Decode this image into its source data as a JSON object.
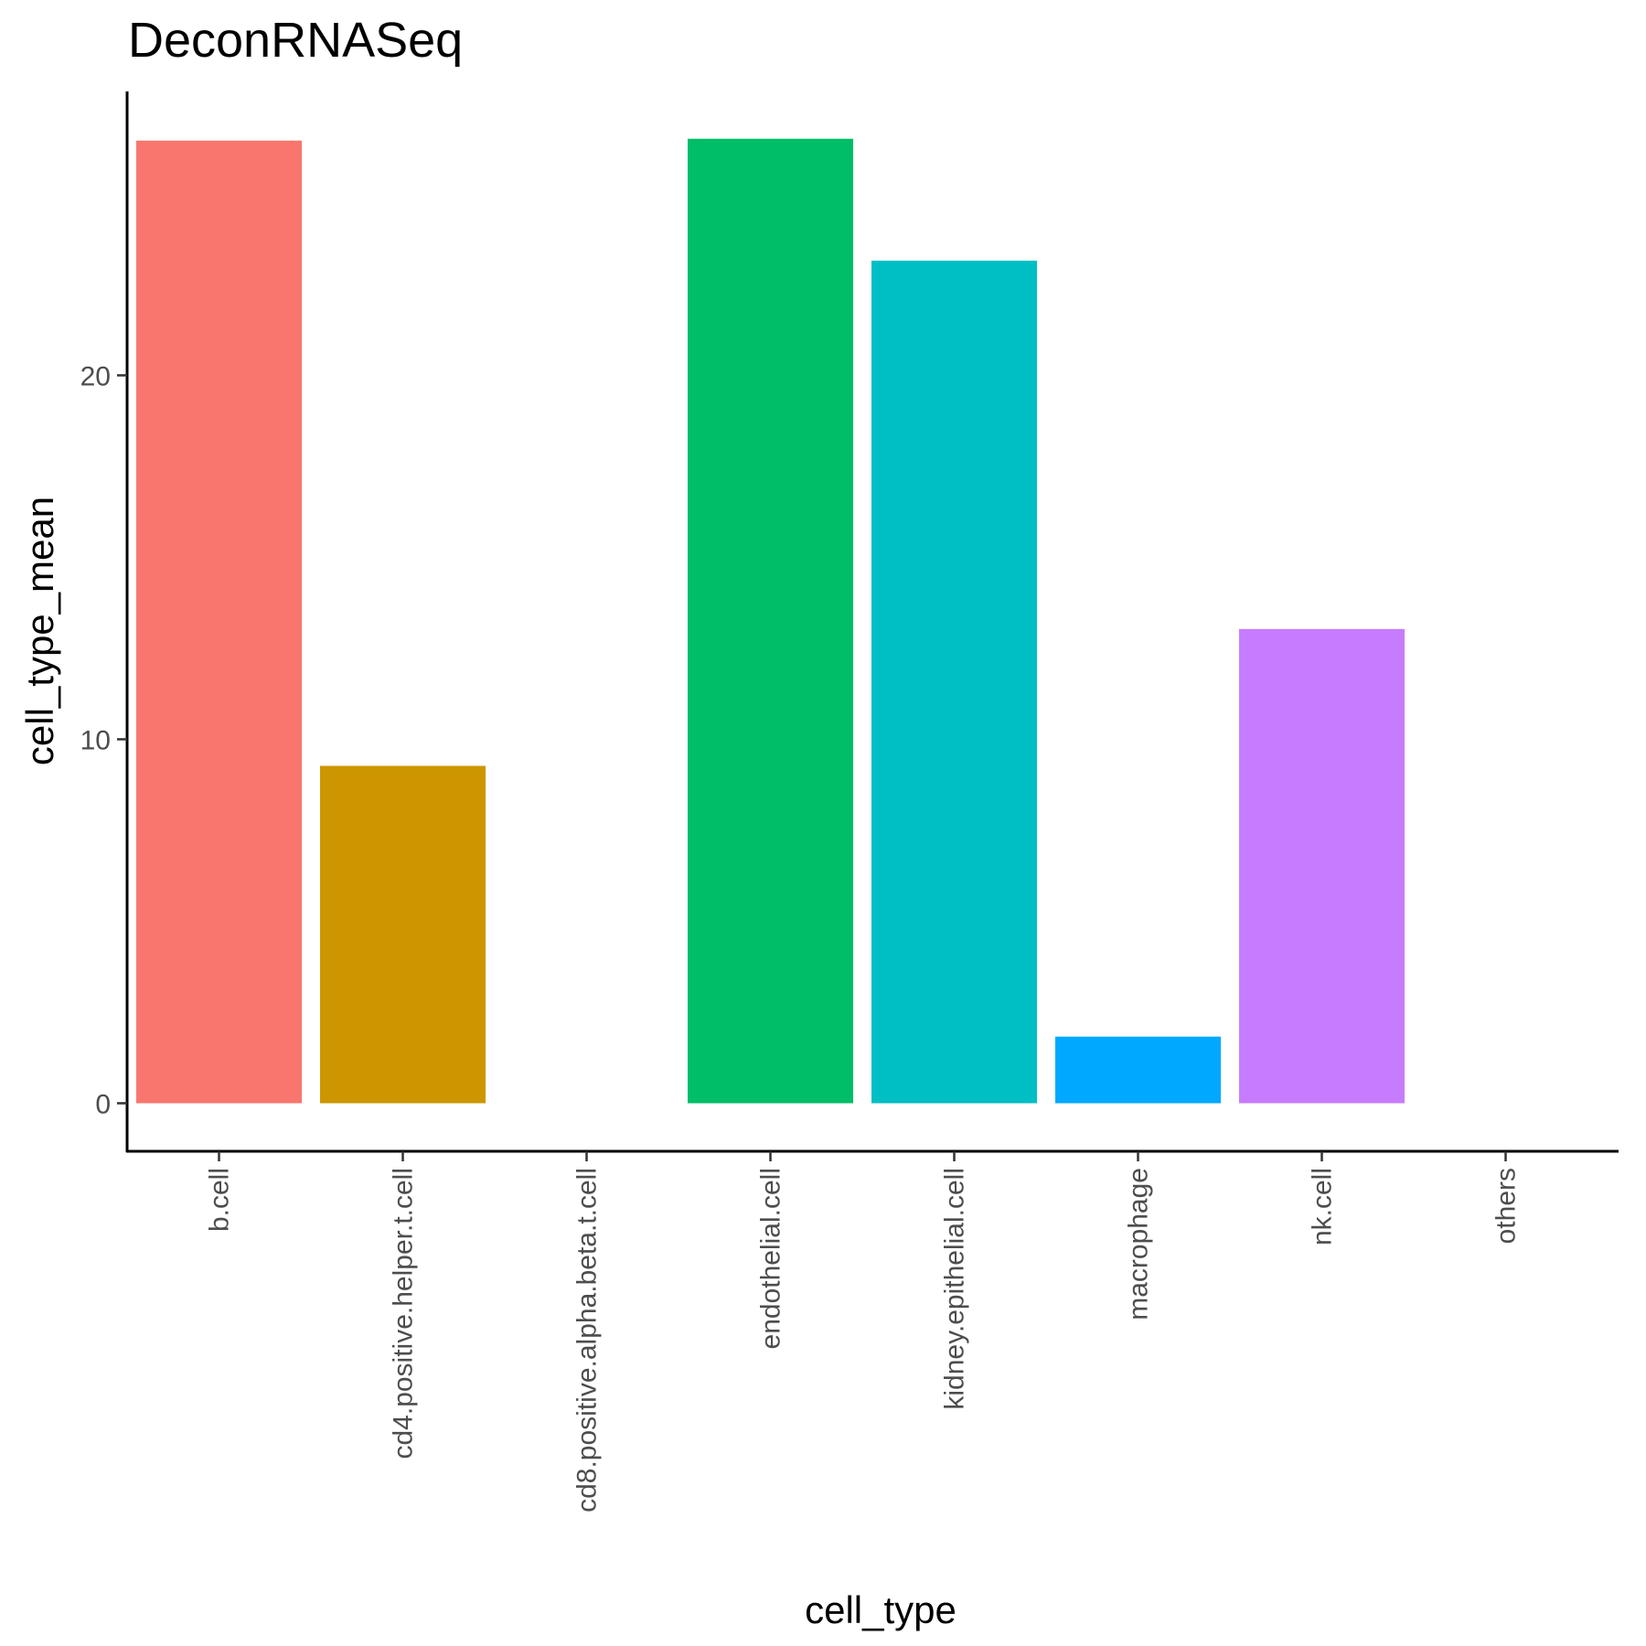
{
  "chart_data": {
    "type": "bar",
    "title": "DeconRNASeq",
    "xlabel": "cell_type",
    "ylabel": "cell_type_mean",
    "categories": [
      "b.cell",
      "cd4.positive.helper.t.cell",
      "cd8.positive.alpha.beta.t.cell",
      "endothelial.cell",
      "kidney.epithelial.cell",
      "macrophage",
      "nk.cell",
      "others"
    ],
    "values": [
      26.45,
      9.27,
      0,
      26.5,
      23.15,
      1.83,
      13.03,
      0
    ],
    "colors": [
      "#F8766D",
      "#CD9600",
      "#7CAE00",
      "#00BE67",
      "#00BFC4",
      "#00A9FF",
      "#C77CFF",
      "#FF61CC"
    ],
    "y_ticks": [
      0,
      10,
      20
    ],
    "ylim": [
      -1.32,
      27.8
    ],
    "grid": false,
    "legend": "none"
  }
}
